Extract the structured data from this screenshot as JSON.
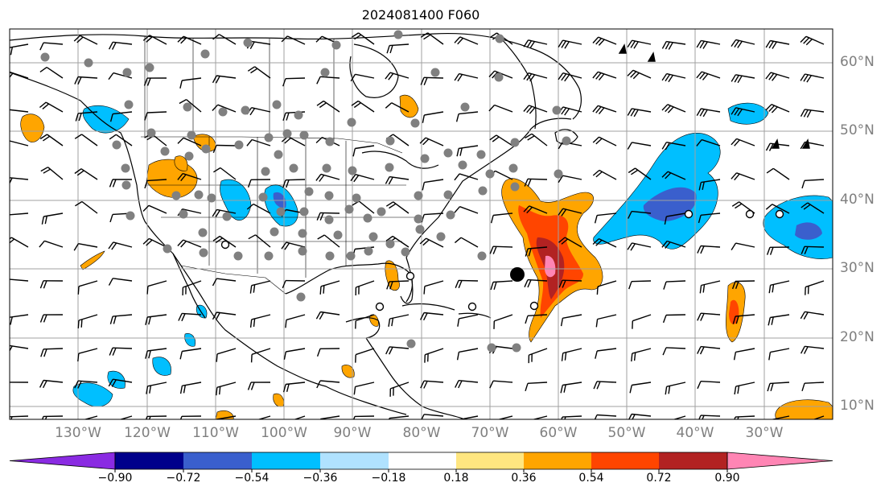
{
  "title": "2024081400 F060",
  "latitude_labels": [
    "60°N",
    "50°N",
    "40°N",
    "30°N",
    "20°N",
    "10°N"
  ],
  "longitude_labels": [
    "130°W",
    "120°W",
    "110°W",
    "100°W",
    "90°W",
    "80°W",
    "70°W",
    "60°W",
    "50°W",
    "40°W",
    "30°W"
  ],
  "colorbar": {
    "tick_labels": [
      "−0.90",
      "−0.72",
      "−0.54",
      "−0.36",
      "−0.18",
      "0.18",
      "0.36",
      "0.54",
      "0.72",
      "0.90"
    ],
    "colors": [
      "#8a2be2",
      "#00008b",
      "#3a5fcd",
      "#00bfff",
      "#b0e2ff",
      "#ffffff",
      "#ffe680",
      "#ffa500",
      "#ff4500",
      "#b22222",
      "#ff85b4"
    ]
  },
  "palette": {
    "positive_light": "#ffa500",
    "positive_mid": "#ff4500",
    "positive_dark": "#b22222",
    "positive_max": "#ff85b4",
    "negative_light": "#00bfff",
    "negative_mid": "#3a5fcd",
    "station_dot": "#808080",
    "grid": "#a0a0a0"
  }
}
